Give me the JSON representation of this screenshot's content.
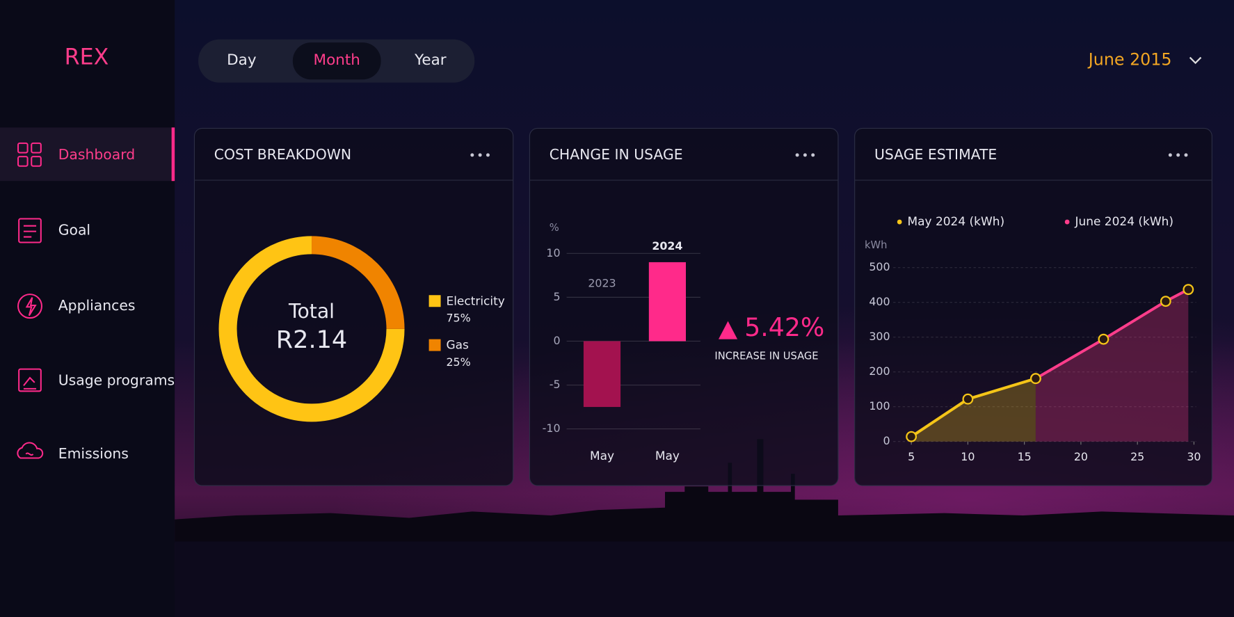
{
  "sidebar": {
    "logo": "REX",
    "items": [
      "Dashboard",
      "Goal",
      "Appliances",
      "Usage programs",
      "Emissions"
    ]
  },
  "tabs": {
    "items": [
      "Day",
      "Month",
      "Year"
    ]
  },
  "date_picker": "June 2015",
  "chart_data": [
    {
      "type": "pie",
      "title": "COST BREAKDOWN",
      "center_label": "Total",
      "center_value": "R2.14",
      "categories": [
        "Electricity",
        "Gas"
      ],
      "values": [
        75,
        25
      ],
      "value_labels": [
        "75%",
        "25%"
      ],
      "colors": [
        "#ffc414",
        "#f08400"
      ]
    },
    {
      "type": "bar",
      "title": "CHANGE IN USAGE",
      "y_label": "%",
      "categories": [
        "May",
        "May"
      ],
      "series": [
        {
          "name": "2023",
          "color": "#a3124f",
          "values": [
            -7.5,
            null
          ]
        },
        {
          "name": "2024",
          "color": "#ff2a8a",
          "values": [
            null,
            9
          ]
        }
      ],
      "ylim": [
        -10,
        10
      ],
      "yticks": [
        -10,
        -5,
        0,
        5,
        10
      ],
      "grid": true,
      "change_label": "5.42%",
      "change_caption": "INCREASE IN USAGE"
    },
    {
      "type": "line",
      "title": "USAGE ESTIMATE",
      "y_label": "kWh",
      "x": [
        5,
        10,
        16,
        22,
        27.5,
        29.5
      ],
      "series": [
        {
          "name": "May 2024 (kWh)",
          "color": "#f5c518",
          "values": [
            14,
            122,
            181,
            null,
            null,
            null
          ]
        },
        {
          "name": "June 2024 (kWh)",
          "color": "#ff3d8b",
          "values": [
            null,
            null,
            181,
            294,
            403,
            437
          ]
        }
      ],
      "xlim": [
        3.4,
        30.2
      ],
      "xticks": [
        5,
        10,
        15,
        20,
        25,
        30
      ],
      "ylim": [
        0,
        500
      ],
      "yticks": [
        0,
        100,
        200,
        300,
        400,
        500
      ],
      "grid": true
    }
  ]
}
